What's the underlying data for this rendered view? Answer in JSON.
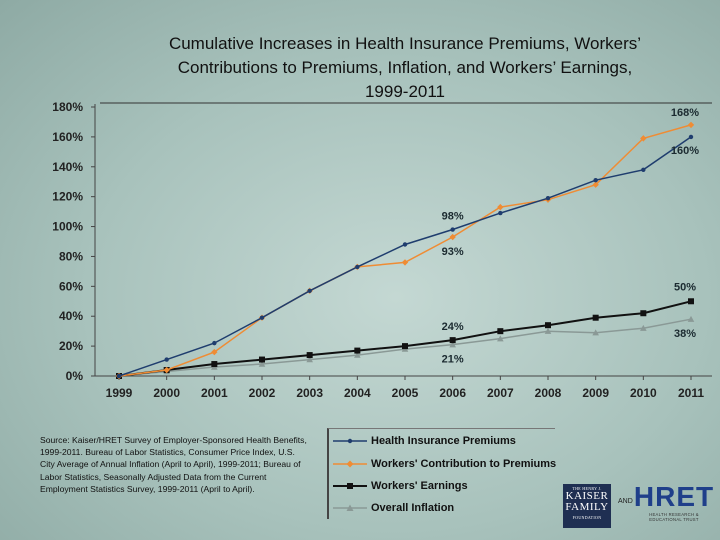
{
  "chart_data": {
    "type": "line",
    "title_lines": [
      "Cumulative Increases in Health Insurance Premiums, Workers’",
      "Contributions to Premiums, Inflation, and Workers’ Earnings,",
      "1999-2011"
    ],
    "categories": [
      "1999",
      "2000",
      "2001",
      "2002",
      "2003",
      "2004",
      "2005",
      "2006",
      "2007",
      "2008",
      "2009",
      "2010",
      "2011"
    ],
    "ylim": [
      0,
      180
    ],
    "yticks": [
      0,
      20,
      40,
      60,
      80,
      100,
      120,
      140,
      160,
      180
    ],
    "ytick_labels": [
      "0%",
      "20%",
      "40%",
      "60%",
      "80%",
      "100%",
      "120%",
      "140%",
      "160%",
      "180%"
    ],
    "series": [
      {
        "name": "Health Insurance Premiums",
        "color": "#1f3d6e",
        "marker": "dot",
        "values": [
          0,
          11,
          22,
          39,
          57,
          73,
          88,
          98,
          109,
          119,
          131,
          138,
          160
        ]
      },
      {
        "name": "Workers' Contribution to Premiums",
        "color": "#ef8c34",
        "marker": "diamond",
        "values": [
          0,
          4,
          16,
          39,
          57,
          73,
          76,
          93,
          113,
          118,
          128,
          159,
          168
        ]
      },
      {
        "name": "Workers' Earnings",
        "color": "#111111",
        "marker": "square",
        "values": [
          0,
          4,
          8,
          11,
          14,
          17,
          20,
          24,
          30,
          34,
          39,
          42,
          50
        ]
      },
      {
        "name": "Overall Inflation",
        "color": "#8a9996",
        "marker": "triangle",
        "values": [
          0,
          3,
          6,
          8,
          11,
          14,
          18,
          21,
          25,
          30,
          29,
          32,
          38
        ]
      }
    ],
    "annotations": [
      {
        "text": "168%",
        "x": "2011",
        "y": 168
      },
      {
        "text": "160%",
        "x": "2011",
        "y": 160
      },
      {
        "text": "98%",
        "x": "2006",
        "y": 98
      },
      {
        "text": "93%",
        "x": "2006",
        "y": 93
      },
      {
        "text": "50%",
        "x": "2011",
        "y": 50
      },
      {
        "text": "38%",
        "x": "2011",
        "y": 38
      },
      {
        "text": "24%",
        "x": "2006",
        "y": 24
      },
      {
        "text": "21%",
        "x": "2006",
        "y": 21
      }
    ]
  },
  "source_note": "Source:  Kaiser/HRET Survey of Employer-Sponsored Health Benefits, 1999-2011.  Bureau of Labor Statistics, Consumer Price Index, U.S. City Average of Annual Inflation (April to April), 1999-2011; Bureau of Labor Statistics, Seasonally Adjusted Data from the Current Employment Statistics Survey, 1999-2011 (April to April).",
  "logos": {
    "kff": {
      "line1": "THE HENRY J.",
      "line2": "KAISER",
      "line3": "FAMILY",
      "line4": "FOUNDATION"
    },
    "and_text": "AND",
    "hret": {
      "mark": "HRET",
      "sub1": "HEALTH RESEARCH &",
      "sub2": "EDUCATIONAL TRUST"
    }
  }
}
